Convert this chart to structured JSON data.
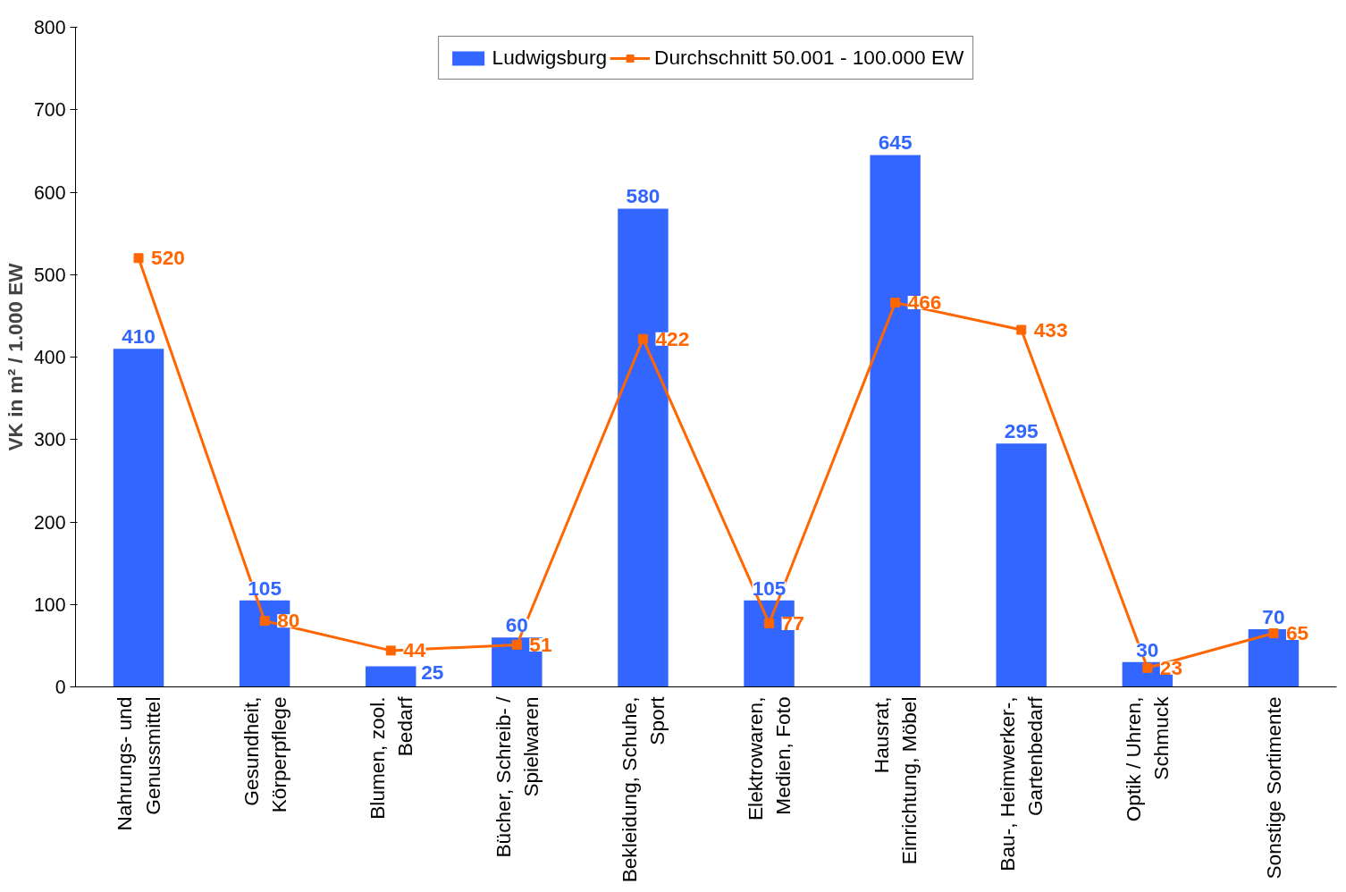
{
  "chart_data": {
    "type": "bar",
    "ylabel": "VK in m² / 1.000 EW",
    "categories": [
      "Nahrungs- und\nGenussmittel",
      "Gesundheit,\nKörperpflege",
      "Blumen, zool.\nBedarf",
      "Bücher, Schreib- /\nSpielwaren",
      "Bekleidung, Schuhe,\nSport",
      "Elektrowaren,\nMedien, Foto",
      "Hausrat,\nEinrichtung, Möbel",
      "Bau-, Heimwerker-,\nGartenbedarf",
      "Optik / Uhren,\nSchmuck",
      "Sonstige Sortimente"
    ],
    "series": [
      {
        "name": "Ludwigsburg",
        "color": "#3366ff",
        "values": [
          410,
          105,
          25,
          60,
          580,
          105,
          645,
          295,
          30,
          70
        ]
      },
      {
        "name": "Durchschnitt 50.001 - 100.000 EW",
        "type": "line",
        "color": "#ff6600",
        "marker": "square",
        "values": [
          520,
          80,
          44,
          51,
          422,
          77,
          466,
          433,
          23,
          65
        ]
      }
    ],
    "ylim": [
      0,
      800
    ],
    "yticks": [
      0,
      100,
      200,
      300,
      400,
      500,
      600,
      700,
      800
    ],
    "grid": false,
    "legend": "top",
    "data_labels": true
  }
}
